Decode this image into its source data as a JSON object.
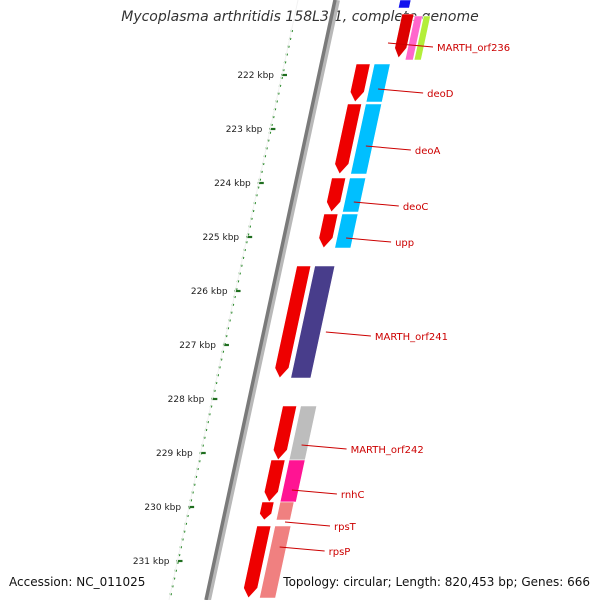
{
  "title": "Mycoplasma arthritidis 158L3-1, complete genome",
  "accession_text": "Accession: NC_011025",
  "summary_text": "Topology: circular; Length: 820,453 bp; Genes: 666",
  "colors": {
    "backbone": "#7a7a7a",
    "scale_dots": "#2a8a2a",
    "scale_ticks": "#1f6e1f",
    "label_color": "#cc0000",
    "forward_strand": "#ee0000"
  },
  "scale": {
    "ticks": [
      {
        "label": "222 kbp"
      },
      {
        "label": "223 kbp"
      },
      {
        "label": "224 kbp"
      },
      {
        "label": "225 kbp"
      },
      {
        "label": "226 kbp"
      },
      {
        "label": "227 kbp"
      },
      {
        "label": "228 kbp"
      },
      {
        "label": "229 kbp"
      },
      {
        "label": "230 kbp"
      },
      {
        "label": "231 kbp"
      }
    ]
  },
  "gene_labels": [
    {
      "name": "MARTH_orf236",
      "color": "#b3ee3a"
    },
    {
      "name": "deoD",
      "color": "#00bfff"
    },
    {
      "name": "deoA",
      "color": "#00bfff"
    },
    {
      "name": "deoC",
      "color": "#00bfff"
    },
    {
      "name": "upp",
      "color": "#00bfff"
    },
    {
      "name": "MARTH_orf241",
      "color": "#483d8b"
    },
    {
      "name": "MARTH_orf242",
      "color": "#bdbdbd"
    },
    {
      "name": "rnhC",
      "color": "#ff1493"
    },
    {
      "name": "rpsT",
      "color": "#f08080"
    },
    {
      "name": "rpsP",
      "color": "#f08080"
    }
  ]
}
